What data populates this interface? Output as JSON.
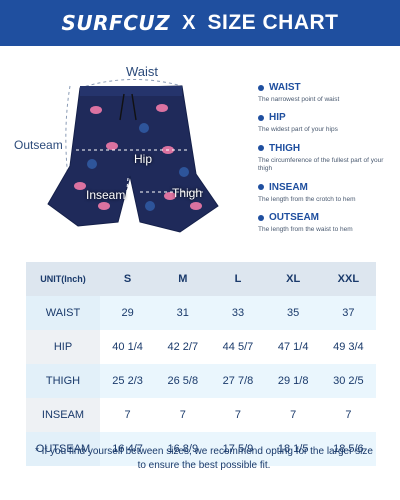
{
  "header": {
    "brand": "SURFCUZ",
    "separator": "X",
    "title": "SIZE CHART"
  },
  "illustration": {
    "labels": {
      "waist": "Waist",
      "outseam": "Outseam",
      "hip": "Hip",
      "inseam": "Inseam",
      "thigh": "Thigh"
    }
  },
  "legend": [
    {
      "term": "WAIST",
      "desc": "The narrowest point of waist"
    },
    {
      "term": "HIP",
      "desc": "The widest part of your hips"
    },
    {
      "term": "THIGH",
      "desc": "The circumference of the fullest part of your thigh"
    },
    {
      "term": "INSEAM",
      "desc": "The length from the crotch to hem"
    },
    {
      "term": "OUTSEAM",
      "desc": "The length from the waist to hem"
    }
  ],
  "table": {
    "unit_label": "UNIT(Inch)",
    "sizes": [
      "S",
      "M",
      "L",
      "XL",
      "XXL"
    ],
    "rows": [
      {
        "name": "WAIST",
        "values": [
          "29",
          "31",
          "33",
          "35",
          "37"
        ]
      },
      {
        "name": "HIP",
        "values": [
          "40 1/4",
          "42 2/7",
          "44 5/7",
          "47 1/4",
          "49 3/4"
        ]
      },
      {
        "name": "THIGH",
        "values": [
          "25 2/3",
          "26 5/8",
          "27 7/8",
          "29 1/8",
          "30 2/5"
        ]
      },
      {
        "name": "INSEAM",
        "values": [
          "7",
          "7",
          "7",
          "7",
          "7"
        ]
      },
      {
        "name": "OUTSEAM",
        "values": [
          "16 4/7",
          "16 8/9",
          "17 5/9",
          "18 1/5",
          "18 5/6"
        ]
      }
    ]
  },
  "note": "* If you find yourself between sizes, we recommend opting for the larger size to ensure the best possible fit.",
  "colors": {
    "brand_blue": "#1f4f9f",
    "shorts_navy": "#1f2a5a",
    "flamingo_pink": "#f07aa8"
  }
}
